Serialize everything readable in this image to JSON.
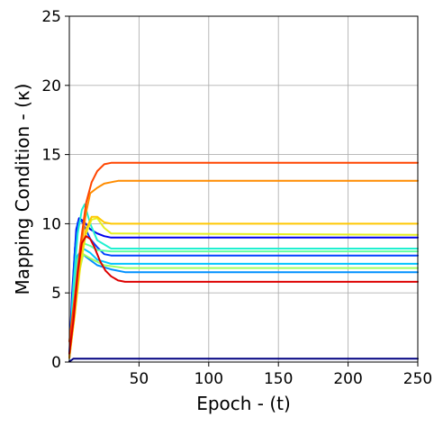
{
  "chart_data": {
    "type": "line",
    "title": "",
    "xlabel": "Epoch - (t)",
    "ylabel": "Mapping Condition - (κ)",
    "xlim": [
      0,
      250
    ],
    "ylim": [
      0,
      25
    ],
    "xticks": [
      50,
      100,
      150,
      200,
      250
    ],
    "yticks": [
      0,
      5,
      10,
      15,
      20,
      25
    ],
    "grid": true,
    "legend": "none",
    "series": [
      {
        "color": "#000080",
        "x": [
          0,
          1,
          3,
          250
        ],
        "y": [
          0.05,
          0.1,
          0.25,
          0.25
        ]
      },
      {
        "color": "#0000ee",
        "x": [
          0,
          2,
          5,
          7,
          10,
          15,
          20,
          25,
          30,
          250
        ],
        "y": [
          0.5,
          5.0,
          9.6,
          10.4,
          10.2,
          9.6,
          9.3,
          9.1,
          9.0,
          9.0
        ]
      },
      {
        "color": "#0044ff",
        "x": [
          0,
          2,
          4,
          6,
          8,
          10,
          15,
          20,
          25,
          30,
          250
        ],
        "y": [
          0.4,
          4.5,
          8.2,
          10.1,
          10.3,
          10.0,
          8.9,
          8.3,
          7.8,
          7.7,
          7.7
        ]
      },
      {
        "color": "#0090ff",
        "x": [
          0,
          2,
          5,
          8,
          12,
          20,
          30,
          40,
          250
        ],
        "y": [
          0.3,
          4.0,
          7.5,
          8.0,
          7.6,
          7.0,
          6.7,
          6.5,
          6.5
        ]
      },
      {
        "color": "#00c4ff",
        "x": [
          0,
          3,
          6,
          10,
          15,
          20,
          30,
          250
        ],
        "y": [
          0.3,
          4.2,
          7.6,
          8.2,
          7.9,
          7.4,
          7.1,
          7.1
        ]
      },
      {
        "color": "#20f0d0",
        "x": [
          0,
          3,
          6,
          9,
          11,
          15,
          20,
          30,
          250
        ],
        "y": [
          0.3,
          5.5,
          9.3,
          11.0,
          11.4,
          10.0,
          8.8,
          8.2,
          8.2
        ]
      },
      {
        "color": "#60ffa0",
        "x": [
          0,
          3,
          6,
          10,
          15,
          20,
          30,
          250
        ],
        "y": [
          0.3,
          4.0,
          7.4,
          8.6,
          8.4,
          8.1,
          8.0,
          8.0
        ]
      },
      {
        "color": "#a0ff60",
        "x": [
          0,
          3,
          6,
          10,
          15,
          25,
          40,
          250
        ],
        "y": [
          0.3,
          3.2,
          6.0,
          7.8,
          7.5,
          7.0,
          6.8,
          6.8
        ]
      },
      {
        "color": "#e6f020",
        "x": [
          0,
          4,
          8,
          12,
          16,
          20,
          25,
          30,
          250
        ],
        "y": [
          0.3,
          3.5,
          7.0,
          9.3,
          10.3,
          10.4,
          9.7,
          9.3,
          9.2
        ]
      },
      {
        "color": "#ffc800",
        "x": [
          0,
          4,
          8,
          12,
          16,
          20,
          25,
          30,
          40,
          250
        ],
        "y": [
          0.3,
          3.5,
          7.5,
          9.6,
          10.5,
          10.5,
          10.1,
          10.0,
          10.0,
          10.0
        ]
      },
      {
        "color": "#ff8c00",
        "x": [
          0,
          4,
          8,
          12,
          15,
          20,
          25,
          30,
          35,
          40,
          250
        ],
        "y": [
          0.3,
          4.0,
          8.0,
          10.8,
          12.2,
          12.6,
          12.9,
          13.0,
          13.1,
          13.1,
          13.1
        ]
      },
      {
        "color": "#ff4500",
        "x": [
          0,
          4,
          8,
          12,
          16,
          20,
          25,
          30,
          35,
          40,
          250
        ],
        "y": [
          1.5,
          4.8,
          8.5,
          11.5,
          13.0,
          13.8,
          14.3,
          14.4,
          14.4,
          14.4,
          14.4
        ]
      },
      {
        "color": "#dd0000",
        "x": [
          0,
          3,
          6,
          9,
          12,
          15,
          18,
          22,
          26,
          30,
          35,
          40,
          250
        ],
        "y": [
          0.6,
          3.0,
          6.5,
          8.6,
          9.1,
          8.9,
          8.3,
          7.3,
          6.6,
          6.2,
          5.9,
          5.8,
          5.8
        ]
      }
    ]
  }
}
